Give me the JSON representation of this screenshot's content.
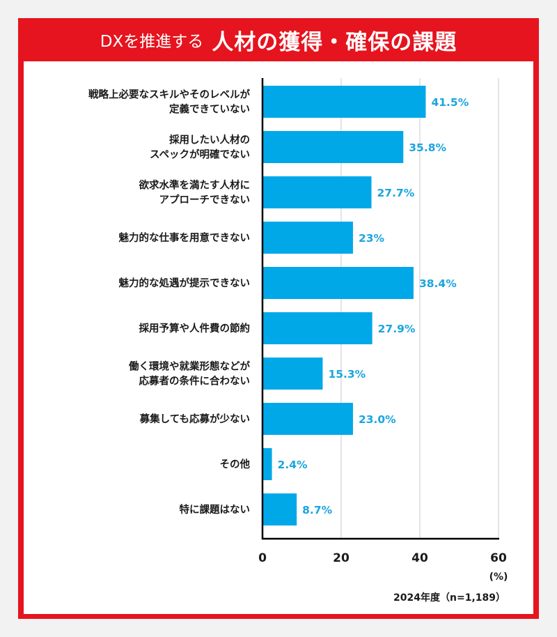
{
  "header": {
    "title_prefix": "DXを推進する",
    "title_main": "人材の獲得・確保の課題"
  },
  "chart_data": {
    "type": "bar",
    "orientation": "horizontal",
    "categories": [
      [
        "戦略上必要なスキルやそのレベルが",
        "定義できていない"
      ],
      [
        "採用したい人材の",
        "スペックが明確でない"
      ],
      [
        "欲求水準を満たす人材に",
        "アプローチできない"
      ],
      [
        "魅力的な仕事を用意できない"
      ],
      [
        "魅力的な処遇が提示できない"
      ],
      [
        "採用予算や人件費の節約"
      ],
      [
        "働く環境や就業形態などが",
        "応募者の条件に合わない"
      ],
      [
        "募集しても応募が少ない"
      ],
      [
        "その他"
      ],
      [
        "特に課題はない"
      ]
    ],
    "values": [
      41.5,
      35.8,
      27.7,
      23,
      38.4,
      27.9,
      15.3,
      23.0,
      2.4,
      8.7
    ],
    "value_labels": [
      "41.5%",
      "35.8%",
      "27.7%",
      "23%",
      "38.4%",
      "27.9%",
      "15.3%",
      "23.0%",
      "2.4%",
      "8.7%"
    ],
    "xlim": [
      0,
      60
    ],
    "xticks": [
      "0",
      "20",
      "40",
      "60"
    ],
    "xlabel": "(%)",
    "note": "2024年度（n=1,189）",
    "grid": true,
    "colors": {
      "bar": "#00a8e8",
      "value_text": "#1aa5e0",
      "frame": "#e5141e"
    }
  }
}
